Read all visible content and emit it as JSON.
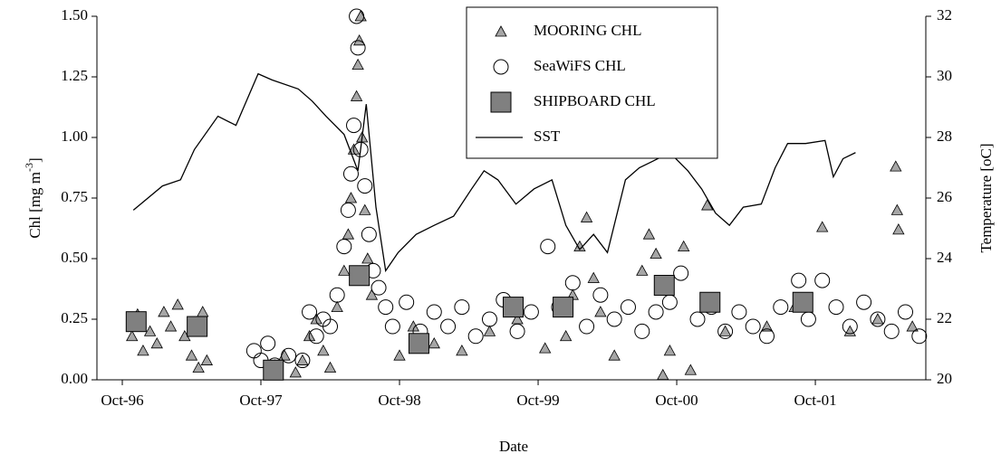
{
  "chart_data": {
    "type": "scatter",
    "x_label": "Date",
    "y_label": {
      "text": "Chl [mg m",
      "sup": "-3",
      "end": "]"
    },
    "y2_label": "Temperature [oC]",
    "xlim": [
      1996.567,
      2002.547
    ],
    "xticks": [
      {
        "value": 1996.75,
        "label": "Oct-96"
      },
      {
        "value": 1997.75,
        "label": "Oct-97"
      },
      {
        "value": 1998.75,
        "label": "Oct-98"
      },
      {
        "value": 1999.75,
        "label": "Oct-99"
      },
      {
        "value": 2000.75,
        "label": "Oct-00"
      },
      {
        "value": 2001.75,
        "label": "Oct-01"
      }
    ],
    "ylim": [
      0,
      1.5
    ],
    "yticks": [
      {
        "value": 0,
        "label": "0.00"
      },
      {
        "value": 0.25,
        "label": "0.25"
      },
      {
        "value": 0.5,
        "label": "0.50"
      },
      {
        "value": 0.75,
        "label": "0.75"
      },
      {
        "value": 1,
        "label": "1.00"
      },
      {
        "value": 1.25,
        "label": "1.25"
      },
      {
        "value": 1.5,
        "label": "1.50"
      }
    ],
    "y2lim": [
      20,
      32
    ],
    "y2ticks": [
      20,
      22,
      24,
      26,
      28,
      30,
      32
    ],
    "legend": "top-center",
    "series": [
      {
        "name": "MOORING CHL",
        "marker": "triangle",
        "color": "#a6a6a6",
        "x": [
          1996.82,
          1996.86,
          1996.9,
          1996.95,
          1997.0,
          1997.05,
          1997.1,
          1997.15,
          1997.2,
          1997.25,
          1997.3,
          1997.33,
          1997.36,
          1997.85,
          1997.92,
          1998.0,
          1998.05,
          1998.1,
          1998.15,
          1998.2,
          1998.25,
          1998.3,
          1998.35,
          1998.38,
          1998.4,
          1998.42,
          1998.44,
          1998.45,
          1998.46,
          1998.47,
          1998.48,
          1998.5,
          1998.52,
          1998.55,
          1998.75,
          1998.85,
          1999.0,
          1999.2,
          1999.4,
          1999.6,
          1999.8,
          1999.95,
          2000.0,
          2000.05,
          2000.1,
          2000.15,
          2000.2,
          2000.3,
          2000.5,
          2000.55,
          2000.6,
          2000.65,
          2000.7,
          2000.8,
          2000.85,
          2000.97,
          2001.1,
          2001.4,
          2001.6,
          2001.8,
          2002.0,
          2002.2,
          2002.33,
          2002.34,
          2002.35,
          2002.45
        ],
        "values": [
          0.18,
          0.27,
          0.12,
          0.2,
          0.15,
          0.28,
          0.22,
          0.31,
          0.18,
          0.1,
          0.05,
          0.28,
          0.08,
          0.06,
          0.1,
          0.03,
          0.08,
          0.18,
          0.25,
          0.12,
          0.05,
          0.3,
          0.45,
          0.6,
          0.75,
          0.95,
          1.17,
          1.3,
          1.4,
          1.5,
          1.0,
          0.7,
          0.5,
          0.35,
          0.1,
          0.22,
          0.15,
          0.12,
          0.2,
          0.25,
          0.13,
          0.18,
          0.35,
          0.55,
          0.67,
          0.42,
          0.28,
          0.1,
          0.45,
          0.6,
          0.52,
          0.02,
          0.12,
          0.55,
          0.04,
          0.72,
          0.2,
          0.22,
          0.3,
          0.63,
          0.2,
          0.25,
          0.88,
          0.7,
          0.62,
          0.22
        ]
      },
      {
        "name": "SeaWiFS CHL",
        "marker": "circle",
        "color": "#ffffff",
        "x": [
          1997.7,
          1997.75,
          1997.8,
          1997.85,
          1997.95,
          1998.05,
          1998.1,
          1998.15,
          1998.2,
          1998.25,
          1998.3,
          1998.35,
          1998.38,
          1998.4,
          1998.42,
          1998.44,
          1998.45,
          1998.47,
          1998.5,
          1998.53,
          1998.56,
          1998.6,
          1998.65,
          1998.7,
          1998.8,
          1998.9,
          1999.0,
          1999.1,
          1999.2,
          1999.3,
          1999.4,
          1999.5,
          1999.6,
          1999.7,
          1999.82,
          1999.9,
          2000.0,
          2000.1,
          2000.2,
          2000.3,
          2000.4,
          2000.5,
          2000.6,
          2000.7,
          2000.78,
          2000.9,
          2001.0,
          2001.1,
          2001.2,
          2001.3,
          2001.4,
          2001.5,
          2001.63,
          2001.7,
          2001.8,
          2001.9,
          2002.0,
          2002.1,
          2002.2,
          2002.3,
          2002.4,
          2002.5
        ],
        "values": [
          0.12,
          0.08,
          0.15,
          0.06,
          0.1,
          0.08,
          0.28,
          0.18,
          0.25,
          0.22,
          0.35,
          0.55,
          0.7,
          0.85,
          1.05,
          1.5,
          1.37,
          0.95,
          0.8,
          0.6,
          0.45,
          0.38,
          0.3,
          0.22,
          0.32,
          0.2,
          0.28,
          0.22,
          0.3,
          0.18,
          0.25,
          0.33,
          0.2,
          0.28,
          0.55,
          0.3,
          0.4,
          0.22,
          0.35,
          0.25,
          0.3,
          0.2,
          0.28,
          0.32,
          0.44,
          0.25,
          0.3,
          0.2,
          0.28,
          0.22,
          0.18,
          0.3,
          0.41,
          0.25,
          0.41,
          0.3,
          0.22,
          0.32,
          0.25,
          0.2,
          0.28,
          0.18
        ]
      },
      {
        "name": "SHIPBOARD CHL",
        "marker": "square",
        "color": "#808080",
        "x": [
          1996.85,
          1997.29,
          1997.84,
          1998.46,
          1998.89,
          1999.57,
          1999.93,
          2000.66,
          2000.99,
          2001.66
        ],
        "values": [
          0.24,
          0.22,
          0.04,
          0.43,
          0.15,
          0.3,
          0.3,
          0.39,
          0.32,
          0.32
        ]
      },
      {
        "name": "SST",
        "marker": "line",
        "color": "#000000",
        "axis": "y2",
        "x": [
          1996.83,
          1997.04,
          1997.17,
          1997.27,
          1997.44,
          1997.57,
          1997.73,
          1997.83,
          1998.02,
          1998.12,
          1998.22,
          1998.35,
          1998.45,
          1998.51,
          1998.58,
          1998.65,
          1998.74,
          1998.87,
          1999.0,
          1999.14,
          1999.27,
          1999.36,
          1999.46,
          1999.59,
          1999.72,
          1999.85,
          1999.95,
          2000.05,
          2000.15,
          2000.25,
          2000.38,
          2000.48,
          2000.57,
          2000.7,
          2000.83,
          2000.93,
          2001.03,
          2001.13,
          2001.23,
          2001.36,
          2001.46,
          2001.55,
          2001.68,
          2001.82,
          2001.88,
          2001.95,
          2002.04
        ],
        "values": [
          25.6,
          26.4,
          26.6,
          27.6,
          28.7,
          28.4,
          30.1,
          29.9,
          29.6,
          29.2,
          28.7,
          28.1,
          26.9,
          29.1,
          25.7,
          23.6,
          24.2,
          24.8,
          25.1,
          25.4,
          26.3,
          26.9,
          26.6,
          25.8,
          26.3,
          26.6,
          25.1,
          24.3,
          24.8,
          24.2,
          26.6,
          27.0,
          27.2,
          27.5,
          26.9,
          26.3,
          25.5,
          25.1,
          25.7,
          25.8,
          27.0,
          27.8,
          27.8,
          27.9,
          26.7,
          27.3,
          27.5
        ]
      }
    ]
  }
}
